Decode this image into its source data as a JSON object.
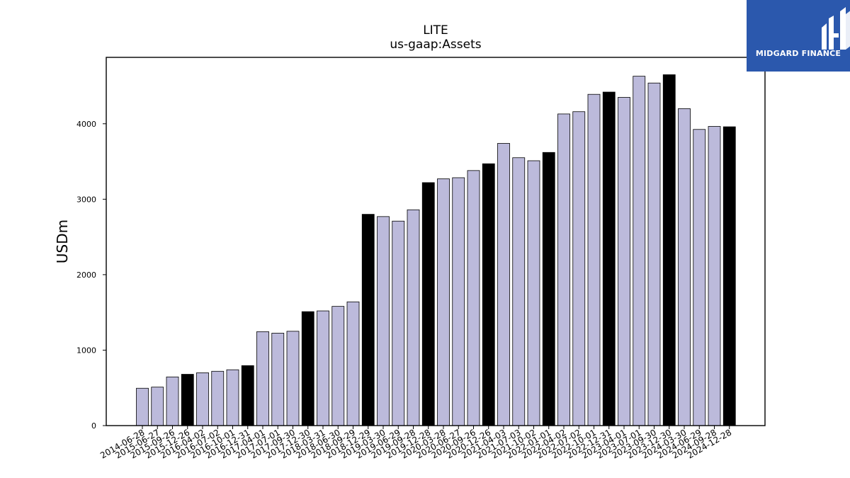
{
  "logo": {
    "text": "MIDGARD FINANCE",
    "icon": "midgard-logo-icon",
    "background": "#2b58ad"
  },
  "chart_data": {
    "type": "bar",
    "title": "LITE",
    "subtitle": "us-gaap:Assets",
    "xlabel": "",
    "ylabel": "USDm",
    "ylim": [
      0,
      4880
    ],
    "yticks": [
      0,
      1000,
      2000,
      3000,
      4000
    ],
    "colors": {
      "quarter": "#bcbadb",
      "fiscal_year_end": "#000000",
      "edge": "#000000"
    },
    "categories": [
      "2014-06-28",
      "2015-06-27",
      "2015-09-26",
      "2015-12-26",
      "2016-04-02",
      "2016-07-02",
      "2016-10-01",
      "2016-12-31",
      "2017-04-01",
      "2017-07-01",
      "2017-09-30",
      "2017-12-30",
      "2018-03-31",
      "2018-06-30",
      "2018-09-29",
      "2018-12-29",
      "2019-03-30",
      "2019-06-29",
      "2019-09-28",
      "2019-12-28",
      "2020-03-28",
      "2020-06-27",
      "2020-09-26",
      "2020-12-26",
      "2021-04-03",
      "2021-07-03",
      "2021-10-02",
      "2022-01-01",
      "2022-04-02",
      "2022-07-02",
      "2022-10-01",
      "2022-12-31",
      "2023-04-01",
      "2023-07-01",
      "2023-09-30",
      "2023-12-30",
      "2024-03-30",
      "2024-06-29",
      "2024-09-28",
      "2024-12-28"
    ],
    "values": [
      495,
      510,
      645,
      680,
      700,
      720,
      740,
      795,
      1245,
      1225,
      1250,
      1510,
      1520,
      1580,
      1640,
      2800,
      2770,
      2710,
      2860,
      3220,
      3270,
      3285,
      3380,
      3470,
      3740,
      3550,
      3510,
      3620,
      4130,
      4160,
      4390,
      4420,
      4350,
      4630,
      4540,
      4650,
      4200,
      3925,
      3965,
      3960
    ],
    "highlight": [
      false,
      false,
      false,
      true,
      false,
      false,
      false,
      true,
      false,
      false,
      false,
      true,
      false,
      false,
      false,
      true,
      false,
      false,
      false,
      true,
      false,
      false,
      false,
      true,
      false,
      false,
      false,
      true,
      false,
      false,
      false,
      true,
      false,
      false,
      false,
      true,
      false,
      false,
      false,
      true
    ]
  }
}
